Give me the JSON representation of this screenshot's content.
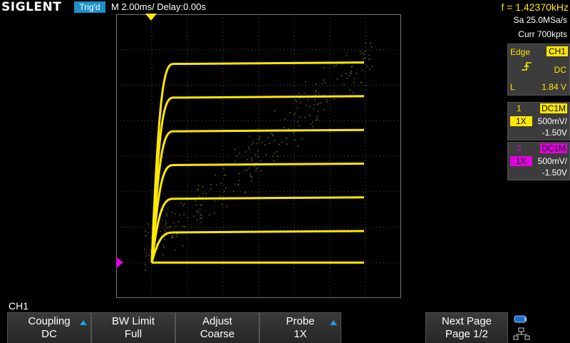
{
  "header": {
    "logo": "SIGLENT",
    "trig_status": "Trig'd",
    "timebase": "M 2.00ms/ Delay:0.00s",
    "frequency": "f = 1.42370kHz",
    "sample_rate": "Sa 25.0MSa/s",
    "memory": "Curr 700kpts"
  },
  "trigger_panel": {
    "type": "Edge",
    "source": "CH1",
    "coupling": "DC",
    "level_label": "L",
    "level": "1.84 V"
  },
  "channel1": {
    "number": "1",
    "coupling": "DC1M",
    "probe": "1X",
    "scale": "500mV/",
    "offset": "-1.50V"
  },
  "channel2": {
    "number": "2",
    "coupling": "DC1M",
    "probe": "1X",
    "scale": "500mV/",
    "offset": "-1.50V"
  },
  "menu": {
    "title": "CH1",
    "softkeys": [
      {
        "line1": "Coupling",
        "line2": "DC"
      },
      {
        "line1": "BW Limit",
        "line2": "Full"
      },
      {
        "line1": "Adjust",
        "line2": "Coarse"
      },
      {
        "line1": "Probe",
        "line2": "1X"
      },
      {
        "line1": "Next Page",
        "line2": "Page 1/2"
      }
    ]
  },
  "colors": {
    "ch1": "#ffe800",
    "ch2": "#e000e0",
    "accent": "#1e8fc8"
  },
  "trace": {
    "curve_levels_divisions": [
      6.6,
      5.65,
      4.7,
      3.75,
      2.8,
      1.85,
      1.0
    ]
  }
}
